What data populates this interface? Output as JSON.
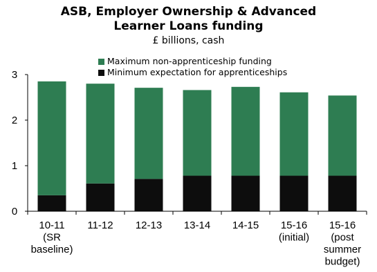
{
  "chart_data": {
    "type": "bar",
    "stacked": true,
    "title_lines": [
      "ASB, Employer Ownership & Advanced",
      "Learner Loans funding"
    ],
    "subtitle": "£ billions, cash",
    "categories": [
      [
        "10-11",
        "(SR",
        "baseline)"
      ],
      [
        "11-12"
      ],
      [
        "12-13"
      ],
      [
        "13-14"
      ],
      [
        "14-15"
      ],
      [
        "15-16",
        "(initial)"
      ],
      [
        "15-16",
        "(post",
        "summer",
        "budget)"
      ]
    ],
    "series": [
      {
        "name": "Minimum expectation for apprenticeships",
        "color": "#0d0d0d",
        "values": [
          0.35,
          0.61,
          0.71,
          0.78,
          0.78,
          0.78,
          0.78
        ]
      },
      {
        "name": "Maximum non-apprenticeship funding",
        "color": "#2e7d52",
        "values": [
          2.5,
          2.19,
          2.0,
          1.88,
          1.95,
          1.83,
          1.76
        ]
      }
    ],
    "yticks": [
      0,
      1,
      2,
      3
    ],
    "ylim": [
      0,
      3
    ],
    "xlabel": "",
    "ylabel": "",
    "legend_position": "top-center",
    "grid": false
  }
}
